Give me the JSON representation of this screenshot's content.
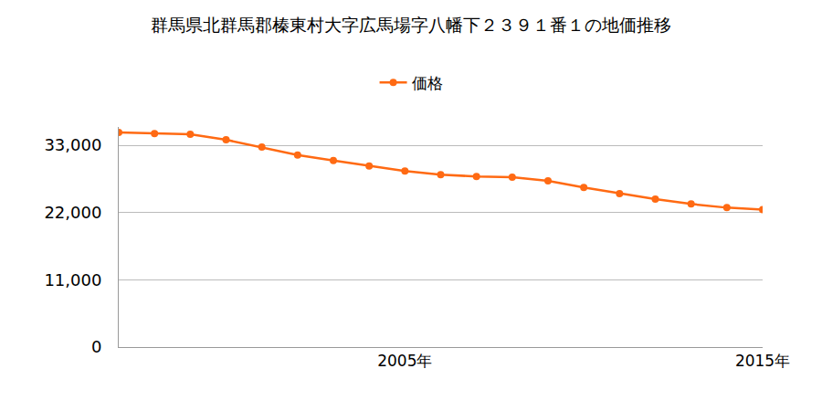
{
  "chart_data": {
    "type": "line",
    "title": "群馬県北群馬郡榛東村大字広馬場字八幡下２３９１番１の地価推移",
    "x": [
      1997,
      1998,
      1999,
      2000,
      2001,
      2002,
      2003,
      2004,
      2005,
      2006,
      2007,
      2008,
      2009,
      2010,
      2011,
      2012,
      2013,
      2014,
      2015
    ],
    "series": [
      {
        "name": "価格",
        "color": "#ff6a13",
        "values": [
          35100,
          34900,
          34800,
          33900,
          32700,
          31400,
          30500,
          29600,
          28800,
          28200,
          27900,
          27800,
          27200,
          26100,
          25100,
          24200,
          23400,
          22800,
          22500
        ]
      }
    ],
    "xlim": [
      1997,
      2015
    ],
    "xticks": [
      {
        "value": 2005,
        "label": "2005年"
      },
      {
        "value": 2015,
        "label": "2015年"
      }
    ],
    "ylim": [
      0,
      36000
    ],
    "yticks": [
      0,
      {
        "value": 11000,
        "label": "11,000"
      },
      {
        "value": 22000,
        "label": "22,000"
      },
      {
        "value": 33000,
        "label": "33,000"
      }
    ],
    "grid": true,
    "legend": "top",
    "marker": "circle"
  }
}
